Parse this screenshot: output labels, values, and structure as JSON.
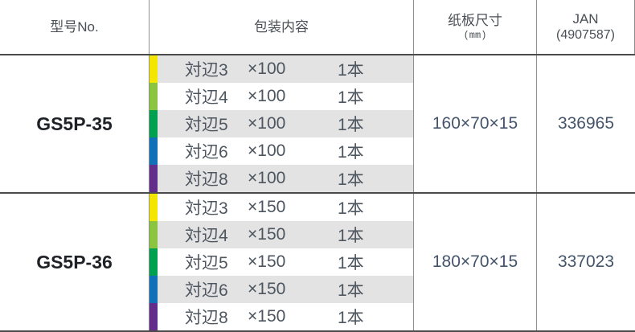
{
  "header": {
    "model": "型号No.",
    "contents": "包装内容",
    "board": "纸板尺寸",
    "board_unit": "(mm)",
    "jan": "JAN",
    "jan_code": "(4907587)"
  },
  "colors": {
    "row-shade": "#e3e3e3",
    "border-dark": "#4b4b4b",
    "border-light": "#8f8f8f"
  },
  "groups": [
    {
      "model": "GS5P-35",
      "board_size": "160×70×15",
      "jan": "336965",
      "rows": [
        {
          "label": "対辺3",
          "spec": "×100",
          "qty": "1本",
          "strip_color": "#f3e600"
        },
        {
          "label": "対辺4",
          "spec": "×100",
          "qty": "1本",
          "strip_color": "#8bc53f"
        },
        {
          "label": "対辺5",
          "spec": "×100",
          "qty": "1本",
          "strip_color": "#00a04f"
        },
        {
          "label": "対辺6",
          "spec": "×100",
          "qty": "1本",
          "strip_color": "#1170b8"
        },
        {
          "label": "対辺8",
          "spec": "×100",
          "qty": "1本",
          "strip_color": "#622d8b"
        }
      ]
    },
    {
      "model": "GS5P-36",
      "board_size": "180×70×15",
      "jan": "337023",
      "rows": [
        {
          "label": "対辺3",
          "spec": "×150",
          "qty": "1本",
          "strip_color": "#f3e600"
        },
        {
          "label": "対辺4",
          "spec": "×150",
          "qty": "1本",
          "strip_color": "#8bc53f"
        },
        {
          "label": "対辺5",
          "spec": "×150",
          "qty": "1本",
          "strip_color": "#00a04f"
        },
        {
          "label": "対辺6",
          "spec": "×150",
          "qty": "1本",
          "strip_color": "#1170b8"
        },
        {
          "label": "対辺8",
          "spec": "×150",
          "qty": "1本",
          "strip_color": "#622d8b"
        }
      ]
    }
  ]
}
